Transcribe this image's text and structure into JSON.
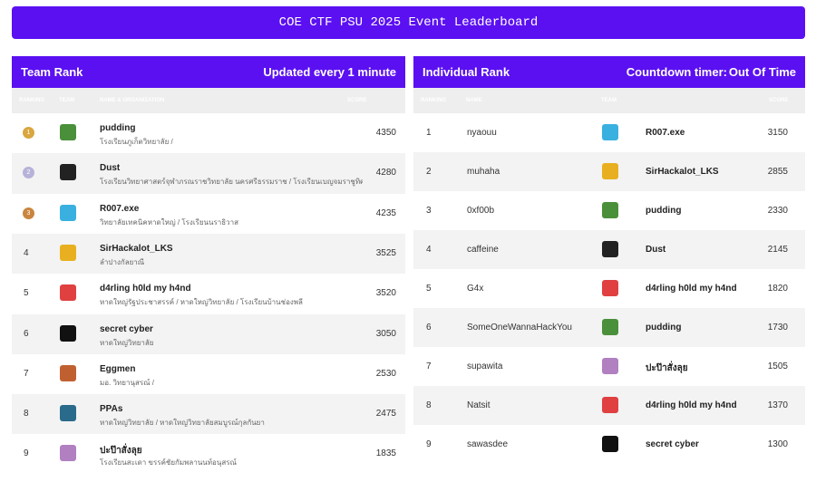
{
  "header": {
    "title": "COE CTF PSU 2025 Event Leaderboard"
  },
  "team_rank": {
    "title": "Team Rank",
    "status": "Updated every 1 minute",
    "columns": [
      "RANKING",
      "TEAM",
      "NAME & ORGANIZATION",
      "SCORE"
    ],
    "rows": [
      {
        "rank": 1,
        "name": "pudding",
        "org": "โรงเรียนภูเก็ตวิทยาลัย /",
        "score": 4350
      },
      {
        "rank": 2,
        "name": "Dust",
        "org": "โรงเรียนวิทยาศาสตร์จุฬาภรณราชวิทยาลัย นครศรีธรรมราช / โรงเรียนเบญจมราชูทิศ ร",
        "score": 4280
      },
      {
        "rank": 3,
        "name": "R007.exe",
        "org": "วิทยาลัยเทคนิคหาดใหญ่ / โรงเรียนนราธิวาส",
        "score": 4235
      },
      {
        "rank": 4,
        "name": "SirHackalot_LKS",
        "org": "ลำปางกัลยาณี",
        "score": 3525
      },
      {
        "rank": 5,
        "name": "d4rling h0ld my h4nd",
        "org": "หาดใหญ่รัฐประชาสรรค์ / หาดใหญ่วิทยาลัย / โรงเรียนบ้านช่องพลี",
        "score": 3520
      },
      {
        "rank": 6,
        "name": "secret cyber",
        "org": "หาดใหญ่วิทยาลัย",
        "score": 3050
      },
      {
        "rank": 7,
        "name": "Eggmen",
        "org": "มอ. วิทยานุสรณ์ /",
        "score": 2530
      },
      {
        "rank": 8,
        "name": "PPAs",
        "org": "หาดใหญ่วิทยาลัย / หาดใหญ่วิทยาลัยสมบูรณ์กุลกันยา",
        "score": 2475
      },
      {
        "rank": 9,
        "name": "ปะป๊าสั่งลุย",
        "org": "โรงเรียนสะเดา ขรรค์ชัยกัมพลานนท์อนุสรณ์",
        "score": 1835
      }
    ]
  },
  "individual_rank": {
    "title": "Individual Rank",
    "status_label": "Countdown timer:",
    "status_value": "Out Of Time",
    "columns": [
      "RANKING",
      "NAME",
      "TEAM",
      "SCORE"
    ],
    "rows": [
      {
        "rank": 1,
        "name": "nyaouu",
        "team": "R007.exe",
        "score": 3150
      },
      {
        "rank": 2,
        "name": "muhaha",
        "team": "SirHackalot_LKS",
        "score": 2855
      },
      {
        "rank": 3,
        "name": "0xf00b",
        "team": "pudding",
        "score": 2330
      },
      {
        "rank": 4,
        "name": "caffeine",
        "team": "Dust",
        "score": 2145
      },
      {
        "rank": 5,
        "name": "G4x",
        "team": "d4rling h0ld my h4nd",
        "score": 1820
      },
      {
        "rank": 6,
        "name": "SomeOneWannaHackYou",
        "team": "pudding",
        "score": 1730
      },
      {
        "rank": 7,
        "name": "supawita",
        "team": "ปะป๊าสั่งลุย",
        "score": 1505
      },
      {
        "rank": 8,
        "name": "Natsit",
        "team": "d4rling h0ld my h4nd",
        "score": 1370
      },
      {
        "rank": 9,
        "name": "sawasdee",
        "team": "secret cyber",
        "score": 1300
      }
    ]
  }
}
